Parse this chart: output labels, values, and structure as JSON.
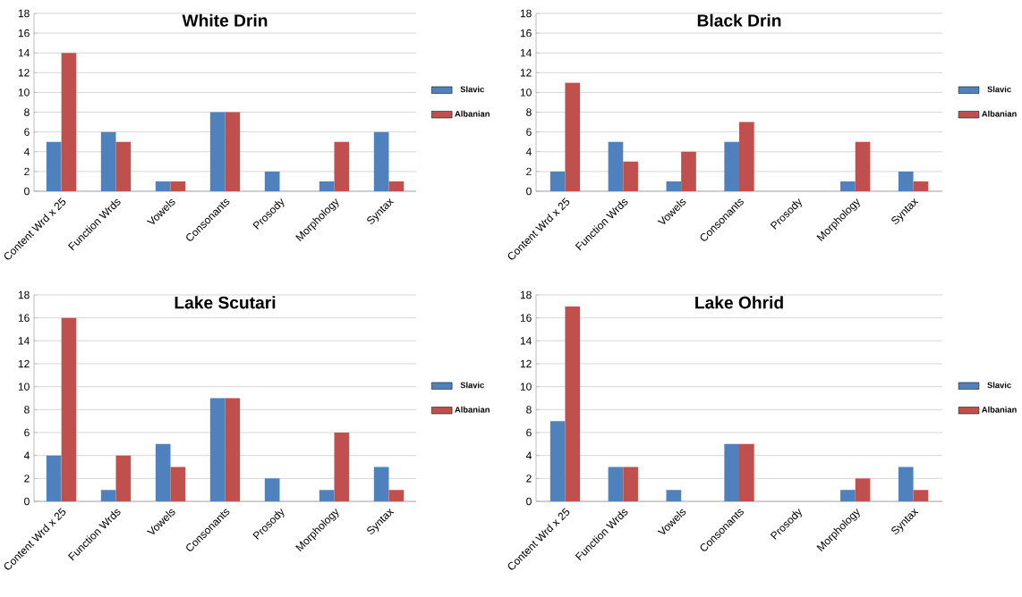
{
  "chart_data": [
    {
      "type": "bar",
      "title": "White Drin",
      "categories": [
        "Content Wrd x 25",
        "Function Wrds",
        "Vowels",
        "Consonants",
        "Prosody",
        "Morphology",
        "Syntax"
      ],
      "series": [
        {
          "name": "Slavic",
          "color": "#4f81bd",
          "values": [
            5,
            6,
            1,
            8,
            2,
            1,
            6
          ]
        },
        {
          "name": "Albanian",
          "color": "#c0504d",
          "values": [
            14,
            5,
            1,
            8,
            0,
            5,
            1
          ]
        }
      ],
      "ylim": [
        0,
        18
      ],
      "yticks": [
        0,
        2,
        4,
        6,
        8,
        10,
        12,
        14,
        16,
        18
      ],
      "grid": "y",
      "legend": "right"
    },
    {
      "type": "bar",
      "title": "Black Drin",
      "categories": [
        "Content Wrd x 25",
        "Function Wrds",
        "Vowels",
        "Consonants",
        "Prosody",
        "Morphology",
        "Syntax"
      ],
      "series": [
        {
          "name": "Slavic",
          "color": "#4f81bd",
          "values": [
            2,
            5,
            1,
            5,
            0,
            1,
            2
          ]
        },
        {
          "name": "Albanian",
          "color": "#c0504d",
          "values": [
            11,
            3,
            4,
            7,
            0,
            5,
            1
          ]
        }
      ],
      "ylim": [
        0,
        18
      ],
      "yticks": [
        0,
        2,
        4,
        6,
        8,
        10,
        12,
        14,
        16,
        18
      ],
      "grid": "y",
      "legend": "right"
    },
    {
      "type": "bar",
      "title": "Lake Scutari",
      "categories": [
        "Content Wrd x 25",
        "Function Wrds",
        "Vowels",
        "Consonants",
        "Prosody",
        "Morphology",
        "Syntax"
      ],
      "series": [
        {
          "name": "Slavic",
          "color": "#4f81bd",
          "values": [
            4,
            1,
            5,
            9,
            2,
            1,
            3
          ]
        },
        {
          "name": "Albanian",
          "color": "#c0504d",
          "values": [
            16,
            4,
            3,
            9,
            0,
            6,
            1
          ]
        }
      ],
      "ylim": [
        0,
        18
      ],
      "yticks": [
        0,
        2,
        4,
        6,
        8,
        10,
        12,
        14,
        16,
        18
      ],
      "grid": "y",
      "legend": "right"
    },
    {
      "type": "bar",
      "title": "Lake Ohrid",
      "categories": [
        "Content Wrd x 25",
        "Function Wrds",
        "Vowels",
        "Consonants",
        "Prosody",
        "Morphology",
        "Syntax"
      ],
      "series": [
        {
          "name": "Slavic",
          "color": "#4f81bd",
          "values": [
            7,
            3,
            1,
            5,
            0,
            1,
            3
          ]
        },
        {
          "name": "Albanian",
          "color": "#c0504d",
          "values": [
            17,
            3,
            0,
            5,
            0,
            2,
            1
          ]
        }
      ],
      "ylim": [
        0,
        18
      ],
      "yticks": [
        0,
        2,
        4,
        6,
        8,
        10,
        12,
        14,
        16,
        18
      ],
      "grid": "y",
      "legend": "right"
    }
  ]
}
